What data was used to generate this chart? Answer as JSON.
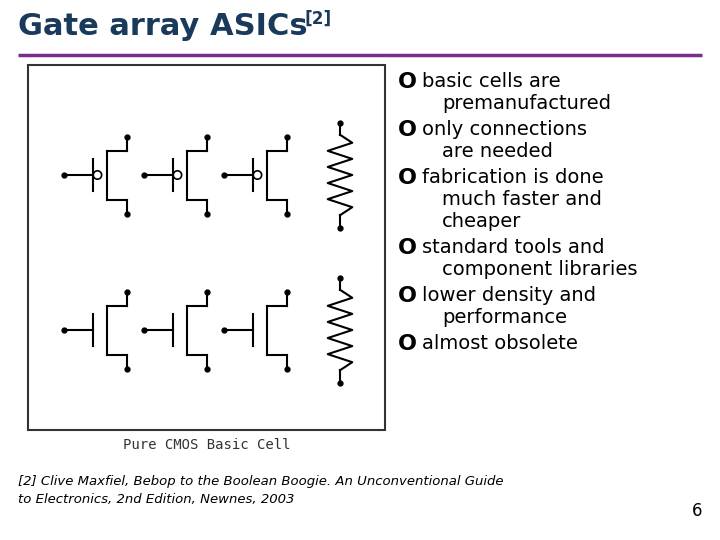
{
  "title": "Gate array ASICs ",
  "title_superscript": "[2]",
  "title_color": "#1a3a5c",
  "separator_color": "#7b2d8b",
  "bg_color": "#ffffff",
  "bullet_color": "#000000",
  "bullet_items": [
    [
      "basic cells are",
      "premanufactured"
    ],
    [
      "only connections",
      "are needed"
    ],
    [
      "fabrication is done",
      "much faster and",
      "cheaper"
    ],
    [
      "standard tools and",
      "component libraries"
    ],
    [
      "lower density and",
      "performance"
    ],
    [
      "almost obsolete"
    ]
  ],
  "caption": "Pure CMOS Basic Cell",
  "footnote_line1": "[2] Clive Maxfiel, Bebop to the Boolean Boogie. An Unconventional Guide",
  "footnote_line2": "to Electronics, 2nd Edition, Newnes, 2003",
  "page_number": "6",
  "title_fontsize": 22,
  "bullet_fontsize": 14,
  "caption_fontsize": 10,
  "footnote_fontsize": 9.5
}
